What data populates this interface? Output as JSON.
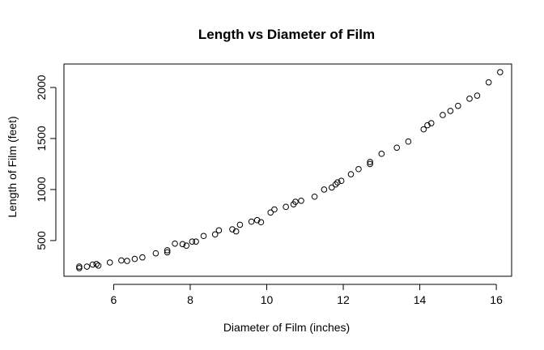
{
  "chart_data": {
    "type": "scatter",
    "title": "Length vs Diameter of Film",
    "xlabel": "Diameter of Film (inches)",
    "ylabel": "Length of Film (feet)",
    "xlim": [
      4.7,
      16.4
    ],
    "ylim": [
      150,
      2230
    ],
    "xticks": [
      6,
      8,
      10,
      12,
      14,
      16
    ],
    "yticks": [
      500,
      1000,
      1500,
      2000
    ],
    "grid": false,
    "marker": "open-circle",
    "series": [
      {
        "points": [
          [
            5.1,
            230
          ],
          [
            5.1,
            245
          ],
          [
            5.3,
            245
          ],
          [
            5.45,
            265
          ],
          [
            5.55,
            270
          ],
          [
            5.6,
            255
          ],
          [
            5.9,
            285
          ],
          [
            6.2,
            305
          ],
          [
            6.35,
            300
          ],
          [
            6.55,
            320
          ],
          [
            6.75,
            335
          ],
          [
            7.1,
            375
          ],
          [
            7.4,
            385
          ],
          [
            7.4,
            405
          ],
          [
            7.6,
            470
          ],
          [
            7.8,
            465
          ],
          [
            7.9,
            450
          ],
          [
            8.05,
            490
          ],
          [
            8.15,
            490
          ],
          [
            8.35,
            545
          ],
          [
            8.65,
            560
          ],
          [
            8.75,
            600
          ],
          [
            9.1,
            610
          ],
          [
            9.2,
            590
          ],
          [
            9.3,
            655
          ],
          [
            9.6,
            685
          ],
          [
            9.75,
            700
          ],
          [
            9.85,
            680
          ],
          [
            10.1,
            775
          ],
          [
            10.2,
            805
          ],
          [
            10.5,
            830
          ],
          [
            10.7,
            855
          ],
          [
            10.75,
            880
          ],
          [
            10.9,
            890
          ],
          [
            11.25,
            930
          ],
          [
            11.5,
            1000
          ],
          [
            11.7,
            1020
          ],
          [
            11.8,
            1050
          ],
          [
            11.85,
            1070
          ],
          [
            11.95,
            1085
          ],
          [
            12.2,
            1150
          ],
          [
            12.4,
            1200
          ],
          [
            12.7,
            1250
          ],
          [
            12.7,
            1270
          ],
          [
            13.0,
            1350
          ],
          [
            13.4,
            1410
          ],
          [
            13.7,
            1470
          ],
          [
            14.1,
            1590
          ],
          [
            14.2,
            1630
          ],
          [
            14.3,
            1650
          ],
          [
            14.6,
            1730
          ],
          [
            14.8,
            1770
          ],
          [
            15.0,
            1820
          ],
          [
            15.3,
            1890
          ],
          [
            15.5,
            1920
          ],
          [
            15.8,
            2050
          ],
          [
            16.1,
            2150
          ]
        ]
      }
    ]
  }
}
